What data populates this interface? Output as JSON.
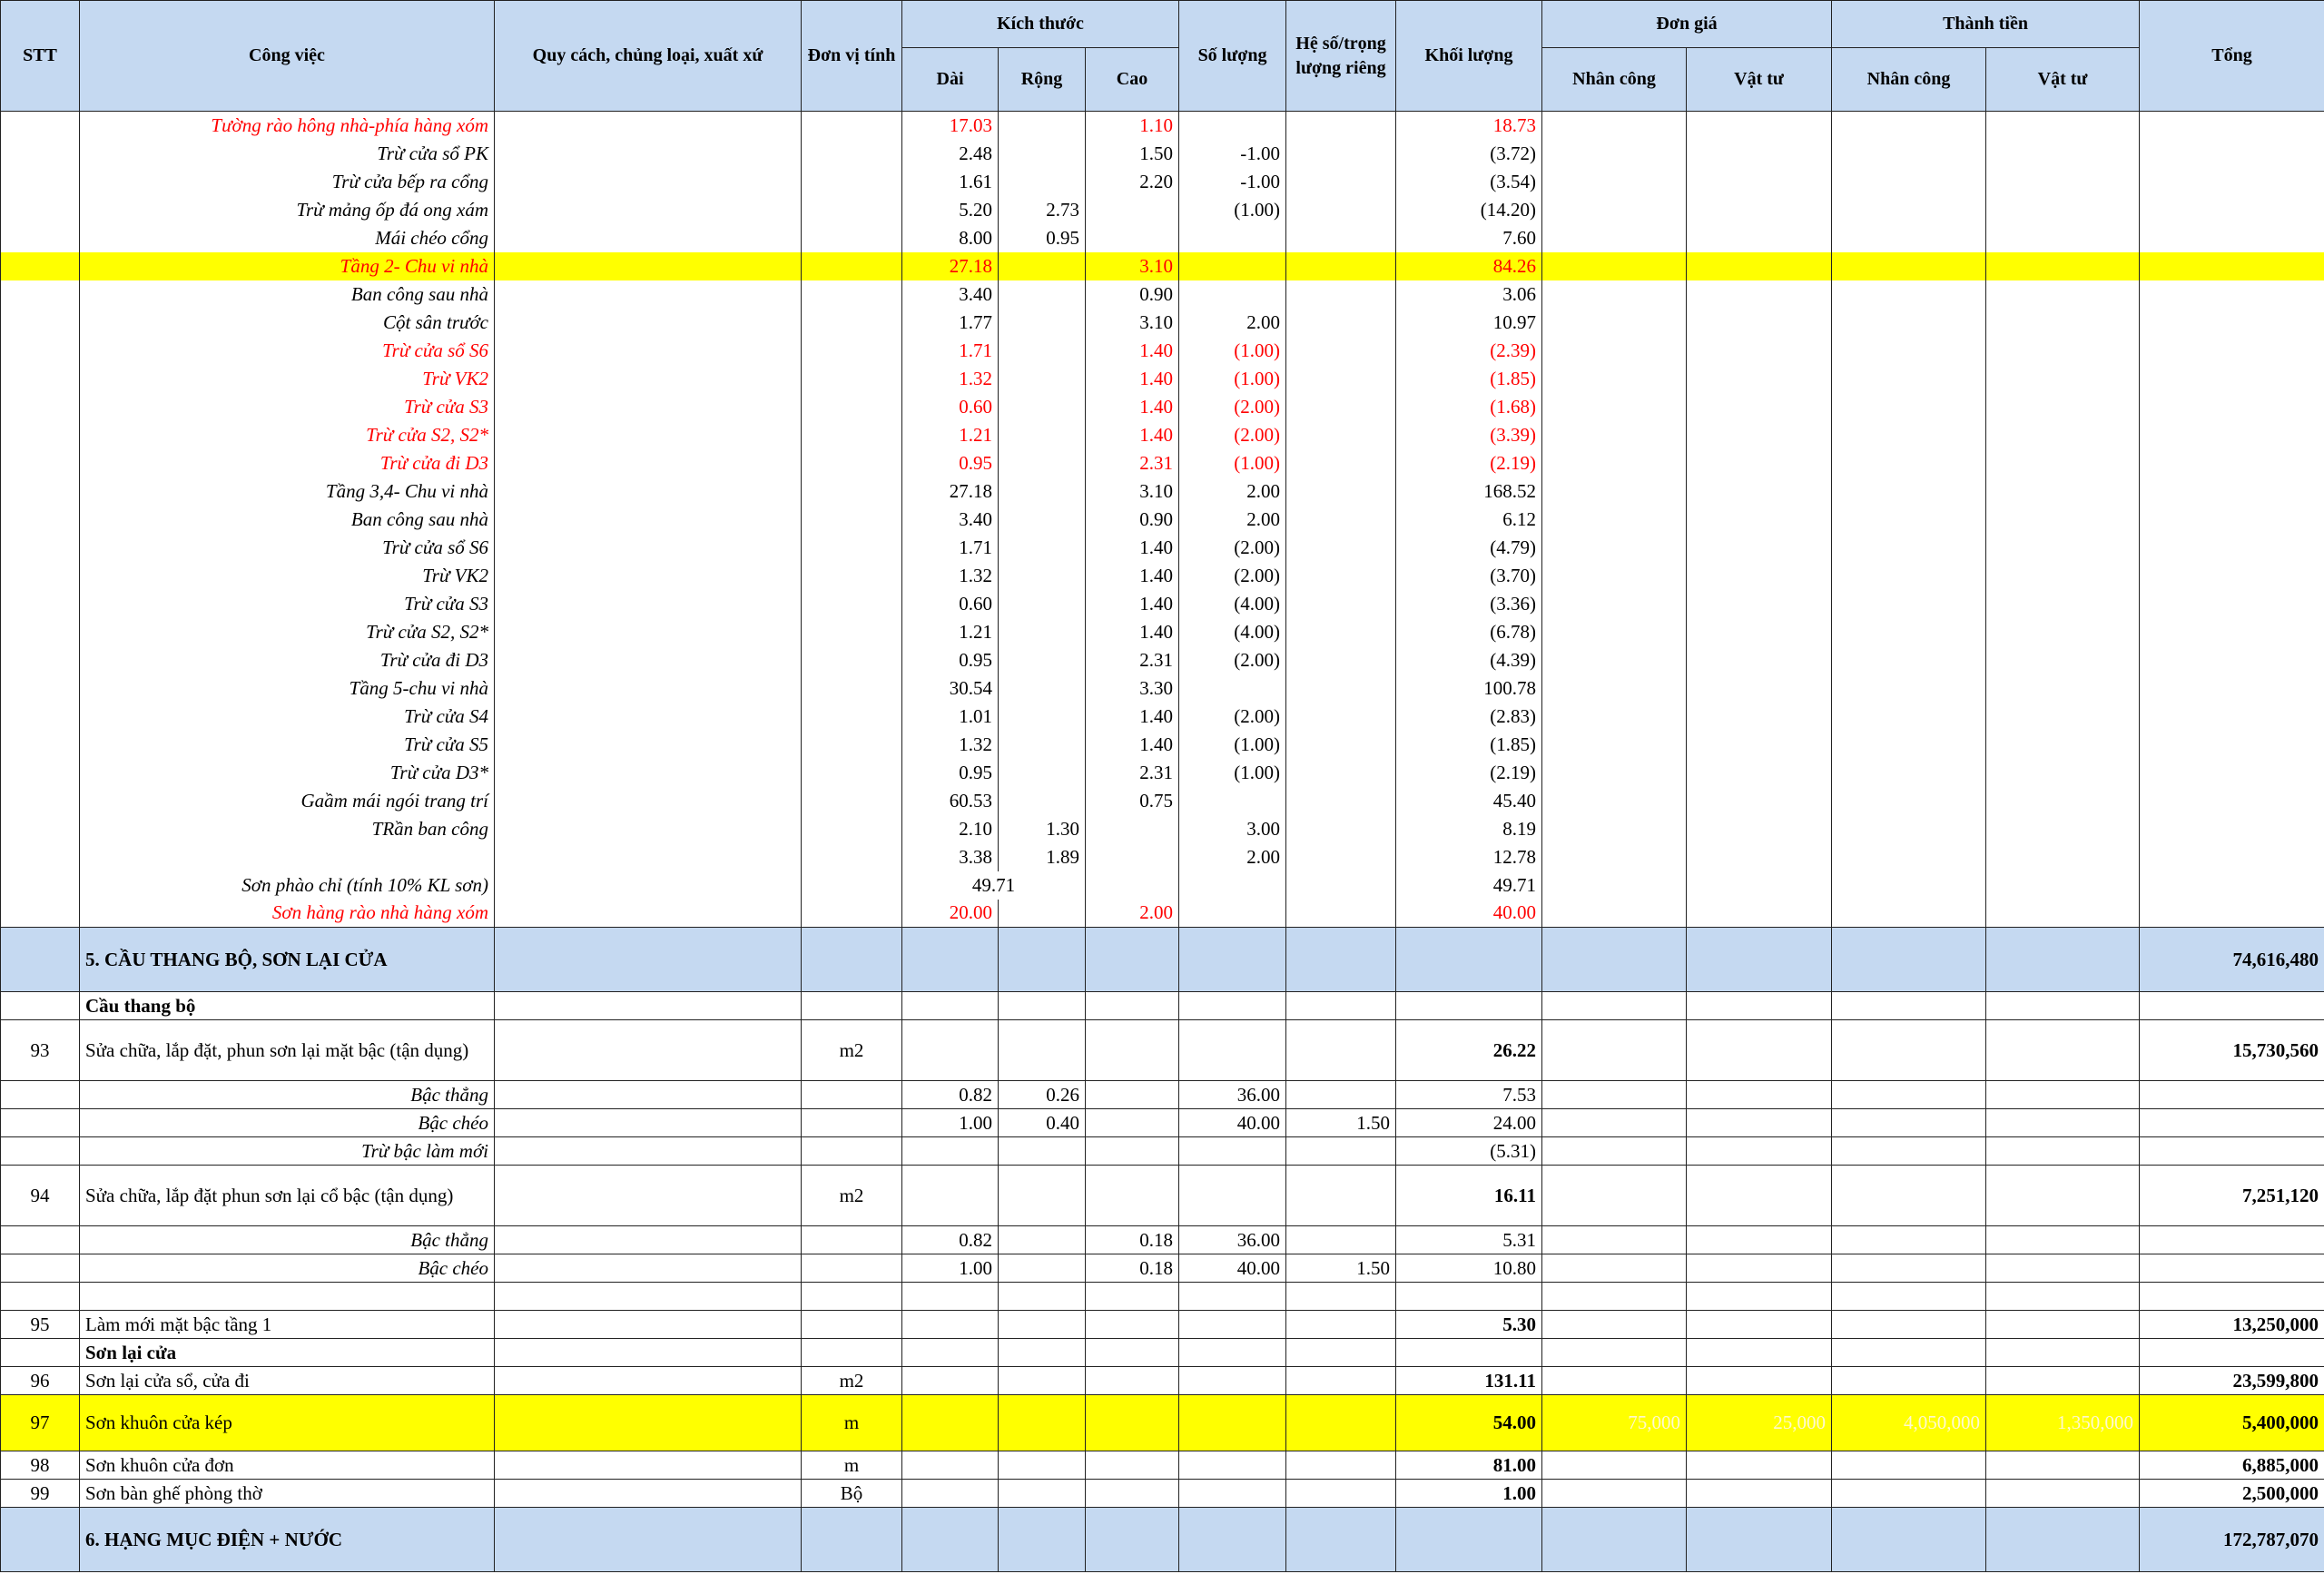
{
  "header": {
    "stt": "STT",
    "work": "Công việc",
    "spec": "Quy cách, chủng loại, xuất xứ",
    "unit": "Đơn vị tính",
    "size": "Kích thước",
    "dai": "Dài",
    "rong": "Rộng",
    "cao": "Cao",
    "sl": "Số lượng",
    "hs": "Hệ số/trọng lượng riêng",
    "kl": "Khối lượng",
    "dongia": "Đơn giá",
    "thanhtien": "Thành tiền",
    "dg_nc": "Nhân công",
    "dg_vt": "Vật tư",
    "tt_nc": "Nhân công",
    "tt_vt": "Vật tư",
    "tong": "Tổng"
  },
  "table": {
    "rows": [
      {
        "style": "sub",
        "color": "#ff0000",
        "work": "Tường rào hông nhà-phía hàng xóm",
        "dai": "17.03",
        "cao": "1.10",
        "kl": "18.73"
      },
      {
        "style": "sub",
        "work": "Trừ cửa sổ PK",
        "dai": "2.48",
        "cao": "1.50",
        "sl": "-1.00",
        "kl": "(3.72)"
      },
      {
        "style": "sub",
        "work": "Trừ cửa bếp ra cổng",
        "dai": "1.61",
        "cao": "2.20",
        "sl": "-1.00",
        "kl": "(3.54)"
      },
      {
        "style": "sub",
        "work": "Trừ mảng ốp đá ong xám",
        "dai": "5.20",
        "rong": "2.73",
        "sl": "(1.00)",
        "kl": "(14.20)"
      },
      {
        "style": "sub",
        "work": "Mái chéo cổng",
        "dai": "8.00",
        "rong": "0.95",
        "kl": "7.60"
      },
      {
        "style": "sub",
        "color": "#ff0000",
        "fill": "#ffff00",
        "work": "Tầng 2- Chu vi nhà",
        "dai": "27.18",
        "cao": "3.10",
        "kl": "84.26"
      },
      {
        "style": "sub",
        "work": "Ban công sau nhà",
        "dai": "3.40",
        "cao": "0.90",
        "kl": "3.06"
      },
      {
        "style": "sub",
        "work": "Cột sân trước",
        "dai": "1.77",
        "cao": "3.10",
        "sl": "2.00",
        "kl": "10.97"
      },
      {
        "style": "sub",
        "color": "#ff0000",
        "work": "Trừ cửa sổ S6",
        "dai": "1.71",
        "cao": "1.40",
        "sl": "(1.00)",
        "kl": "(2.39)"
      },
      {
        "style": "sub",
        "color": "#ff0000",
        "work": "Trừ VK2",
        "dai": "1.32",
        "cao": "1.40",
        "sl": "(1.00)",
        "kl": "(1.85)"
      },
      {
        "style": "sub",
        "color": "#ff0000",
        "work": "Trừ cửa S3",
        "dai": "0.60",
        "cao": "1.40",
        "sl": "(2.00)",
        "kl": "(1.68)"
      },
      {
        "style": "sub",
        "color": "#ff0000",
        "work": "Trừ cửa S2, S2*",
        "dai": "1.21",
        "cao": "1.40",
        "sl": "(2.00)",
        "kl": "(3.39)"
      },
      {
        "style": "sub",
        "color": "#ff0000",
        "work": "Trừ cửa đi D3",
        "dai": "0.95",
        "cao": "2.31",
        "sl": "(1.00)",
        "kl": "(2.19)"
      },
      {
        "style": "sub",
        "work": "Tầng 3,4- Chu vi nhà",
        "dai": "27.18",
        "cao": "3.10",
        "sl": "2.00",
        "kl": "168.52"
      },
      {
        "style": "sub",
        "work": "Ban công sau nhà",
        "dai": "3.40",
        "cao": "0.90",
        "sl": "2.00",
        "kl": "6.12"
      },
      {
        "style": "sub",
        "work": "Trừ cửa sổ S6",
        "dai": "1.71",
        "cao": "1.40",
        "sl": "(2.00)",
        "kl": "(4.79)"
      },
      {
        "style": "sub",
        "work": "Trừ VK2",
        "dai": "1.32",
        "cao": "1.40",
        "sl": "(2.00)",
        "kl": "(3.70)"
      },
      {
        "style": "sub",
        "work": "Trừ cửa S3",
        "dai": "0.60",
        "cao": "1.40",
        "sl": "(4.00)",
        "kl": "(3.36)"
      },
      {
        "style": "sub",
        "work": "Trừ cửa S2, S2*",
        "dai": "1.21",
        "cao": "1.40",
        "sl": "(4.00)",
        "kl": "(6.78)"
      },
      {
        "style": "sub",
        "work": "Trừ cửa đi D3",
        "dai": "0.95",
        "cao": "2.31",
        "sl": "(2.00)",
        "kl": "(4.39)"
      },
      {
        "style": "sub",
        "work": "Tầng 5-chu vi nhà",
        "dai": "30.54",
        "cao": "3.30",
        "kl": "100.78"
      },
      {
        "style": "sub",
        "work": "Trừ cửa S4",
        "dai": "1.01",
        "cao": "1.40",
        "sl": "(2.00)",
        "kl": "(2.83)"
      },
      {
        "style": "sub",
        "work": "Trừ cửa S5",
        "dai": "1.32",
        "cao": "1.40",
        "sl": "(1.00)",
        "kl": "(1.85)"
      },
      {
        "style": "sub",
        "work": "Trừ cửa D3*",
        "dai": "0.95",
        "cao": "2.31",
        "sl": "(1.00)",
        "kl": "(2.19)"
      },
      {
        "style": "sub",
        "work": "Gaầm mái ngói trang trí",
        "dai": "60.53",
        "cao": "0.75",
        "kl": "45.40"
      },
      {
        "style": "sub",
        "work": "TRần ban công",
        "dai": "2.10",
        "rong": "1.30",
        "sl": "3.00",
        "kl": "8.19"
      },
      {
        "style": "sub",
        "dai": "3.38",
        "rong": "1.89",
        "sl": "2.00",
        "kl": "12.78"
      },
      {
        "style": "sub",
        "work": "Sơn phào chỉ (tính 10% KL sơn)",
        "dai_rong": "49.71",
        "kl": "49.71"
      },
      {
        "style": "sub",
        "color": "#ff0000",
        "work": "Sơn hàng rào nhà hàng xóm",
        "dai": "20.00",
        "cao": "2.00",
        "kl": "40.00"
      },
      {
        "style": "section",
        "fill": "#c5d9f1",
        "work": "5. CẦU THANG BỘ, SƠN LẠI CỬA",
        "tong": "74,616,480"
      },
      {
        "style": "group",
        "work": "Cầu thang bộ"
      },
      {
        "style": "item",
        "stt": "93",
        "work": "Sửa chữa, lắp đặt, phun sơn lại mặt bậc (tận dụng)",
        "unit": "m2",
        "kl": "26.22",
        "tong": "15,730,560"
      },
      {
        "style": "sub",
        "work": "Bậc thẳng",
        "dai": "0.82",
        "rong": "0.26",
        "sl": "36.00",
        "kl": "7.53"
      },
      {
        "style": "sub",
        "work": "Bậc chéo",
        "dai": "1.00",
        "rong": "0.40",
        "sl": "40.00",
        "hs": "1.50",
        "kl": "24.00"
      },
      {
        "style": "sub",
        "work": "Trừ bậc làm mới",
        "kl": "(5.31)"
      },
      {
        "style": "item",
        "stt": "94",
        "work": "Sửa chữa, lắp đặt phun sơn lại cổ bậc (tận dụng)",
        "unit": "m2",
        "kl": "16.11",
        "tong": "7,251,120"
      },
      {
        "style": "sub",
        "work": "Bậc thẳng",
        "dai": "0.82",
        "cao": "0.18",
        "sl": "36.00",
        "kl": "5.31"
      },
      {
        "style": "sub",
        "work": "Bậc chéo",
        "dai": "1.00",
        "cao": "0.18",
        "sl": "40.00",
        "hs": "1.50",
        "kl": "10.80"
      },
      {
        "style": "sub"
      },
      {
        "style": "item",
        "stt": "95",
        "work": "Làm mới mặt bậc tầng 1",
        "kl": "5.30",
        "tong": "13,250,000"
      },
      {
        "style": "group",
        "work": "Sơn lại cửa"
      },
      {
        "style": "item",
        "stt": "96",
        "work": "Sơn lại cửa sổ, cửa đi",
        "unit": "m2",
        "kl": "131.11",
        "tong": "23,599,800"
      },
      {
        "style": "item",
        "fill": "#ffff00",
        "price_color": "#fff8d0",
        "stt": "97",
        "work": "Sơn khuôn cửa kép",
        "unit": "m",
        "kl": "54.00",
        "dg_nc": "75,000",
        "dg_vt": "25,000",
        "tt_nc": "4,050,000",
        "tt_vt": "1,350,000",
        "tong": "5,400,000"
      },
      {
        "style": "item",
        "stt": "98",
        "work": "Sơn khuôn cửa đơn",
        "unit": "m",
        "kl": "81.00",
        "tong": "6,885,000"
      },
      {
        "style": "item",
        "stt": "99",
        "work": "Sơn bàn ghế phòng thờ",
        "unit": "Bộ",
        "kl": "1.00",
        "tong": "2,500,000"
      },
      {
        "style": "section",
        "fill": "#c5d9f1",
        "work": "6. HẠNG MỤC ĐIỆN + NƯỚC",
        "tong": "172,787,070"
      }
    ]
  }
}
